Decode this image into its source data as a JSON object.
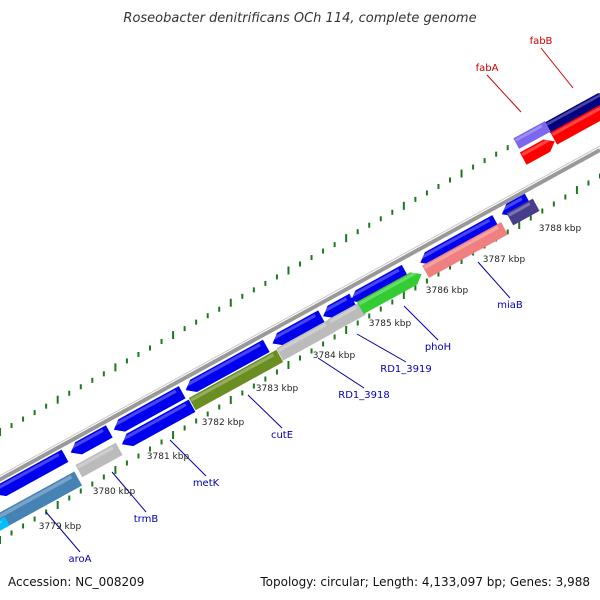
{
  "title": "Roseobacter denitrificans OCh 114, complete genome",
  "footer": {
    "accession": "Accession: NC_008209",
    "summary": "Topology: circular; Length: 4,133,097 bp; Genes: 3,988"
  },
  "colors": {
    "backbone": "#888888",
    "tick": "#1a7a1a",
    "label_blue": "#0000aa",
    "label_red": "#cc0000"
  },
  "ticks": [
    "3779 kbp",
    "3780 kbp",
    "3781 kbp",
    "3782 kbp",
    "3783 kbp",
    "3784 kbp",
    "3785 kbp",
    "3786 kbp",
    "3787 kbp",
    "3788 kbp"
  ],
  "genes": [
    {
      "label": "aroA",
      "color": "#4682b4"
    },
    {
      "label": "trmB",
      "color": "#bbbbbb"
    },
    {
      "label": "metK",
      "color": "#0000ee"
    },
    {
      "label": "cutE",
      "color": "#6b8e23"
    },
    {
      "label": "RD1_3918",
      "color": "#bbbbbb"
    },
    {
      "label": "RD1_3919",
      "color": "#bbbbbb"
    },
    {
      "label": "phoH",
      "color": "#33cc33"
    },
    {
      "label": "miaB",
      "color": "#f08080"
    },
    {
      "label": "fabA",
      "color": "#7b68ee"
    },
    {
      "label": "fabB",
      "color": "#ff0000"
    }
  ]
}
